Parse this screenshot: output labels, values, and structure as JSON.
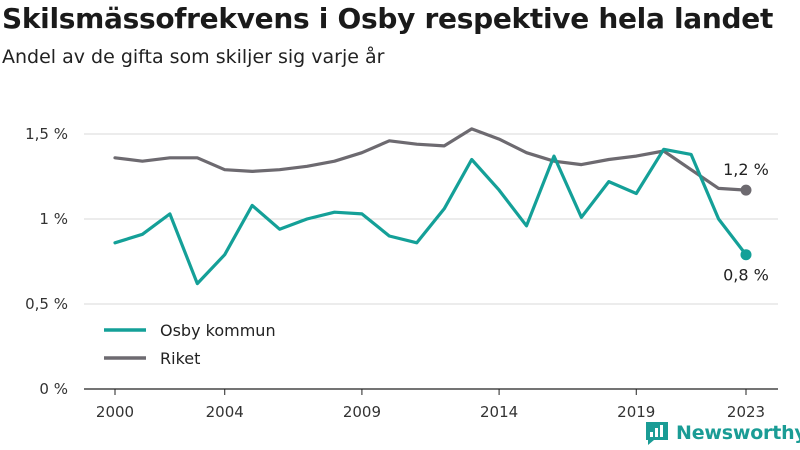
{
  "header": {
    "title": "Skilsmässofrekvens i Osby respektive hela landet",
    "subtitle": "Andel av de gifta som skiljer sig varje år"
  },
  "brand": {
    "name": "Newsworthy",
    "icon": "newsworthy-logo-icon",
    "color": "#1a9c95"
  },
  "chart_data": {
    "type": "line",
    "x": [
      2000,
      2001,
      2002,
      2003,
      2004,
      2005,
      2006,
      2007,
      2008,
      2009,
      2010,
      2011,
      2012,
      2013,
      2014,
      2015,
      2016,
      2017,
      2018,
      2019,
      2020,
      2021,
      2022,
      2023
    ],
    "x_ticks": [
      "2000",
      "2004",
      "2009",
      "2014",
      "2019",
      "2023"
    ],
    "y_ticks": [
      "0 %",
      "0,5 %",
      "1 %",
      "1,5 %"
    ],
    "y_tick_values": [
      0,
      0.5,
      1,
      1.5
    ],
    "ylim": [
      0,
      1.5
    ],
    "grid": true,
    "legend_position": "bottom-left",
    "series": [
      {
        "name": "Osby kommun",
        "color": "#14a098",
        "values": [
          0.86,
          0.91,
          1.03,
          0.62,
          0.79,
          1.08,
          0.94,
          1.0,
          1.04,
          1.03,
          0.9,
          0.86,
          1.06,
          1.35,
          1.17,
          0.96,
          1.37,
          1.01,
          1.22,
          1.15,
          1.41,
          1.38,
          1.0,
          0.79
        ],
        "end_label": "0,8 %"
      },
      {
        "name": "Riket",
        "color": "#6d6a70",
        "values": [
          1.36,
          1.34,
          1.36,
          1.36,
          1.29,
          1.28,
          1.29,
          1.31,
          1.34,
          1.39,
          1.46,
          1.44,
          1.43,
          1.53,
          1.47,
          1.39,
          1.34,
          1.32,
          1.35,
          1.37,
          1.4,
          1.29,
          1.18,
          1.17
        ],
        "end_label": "1,2 %"
      }
    ]
  }
}
